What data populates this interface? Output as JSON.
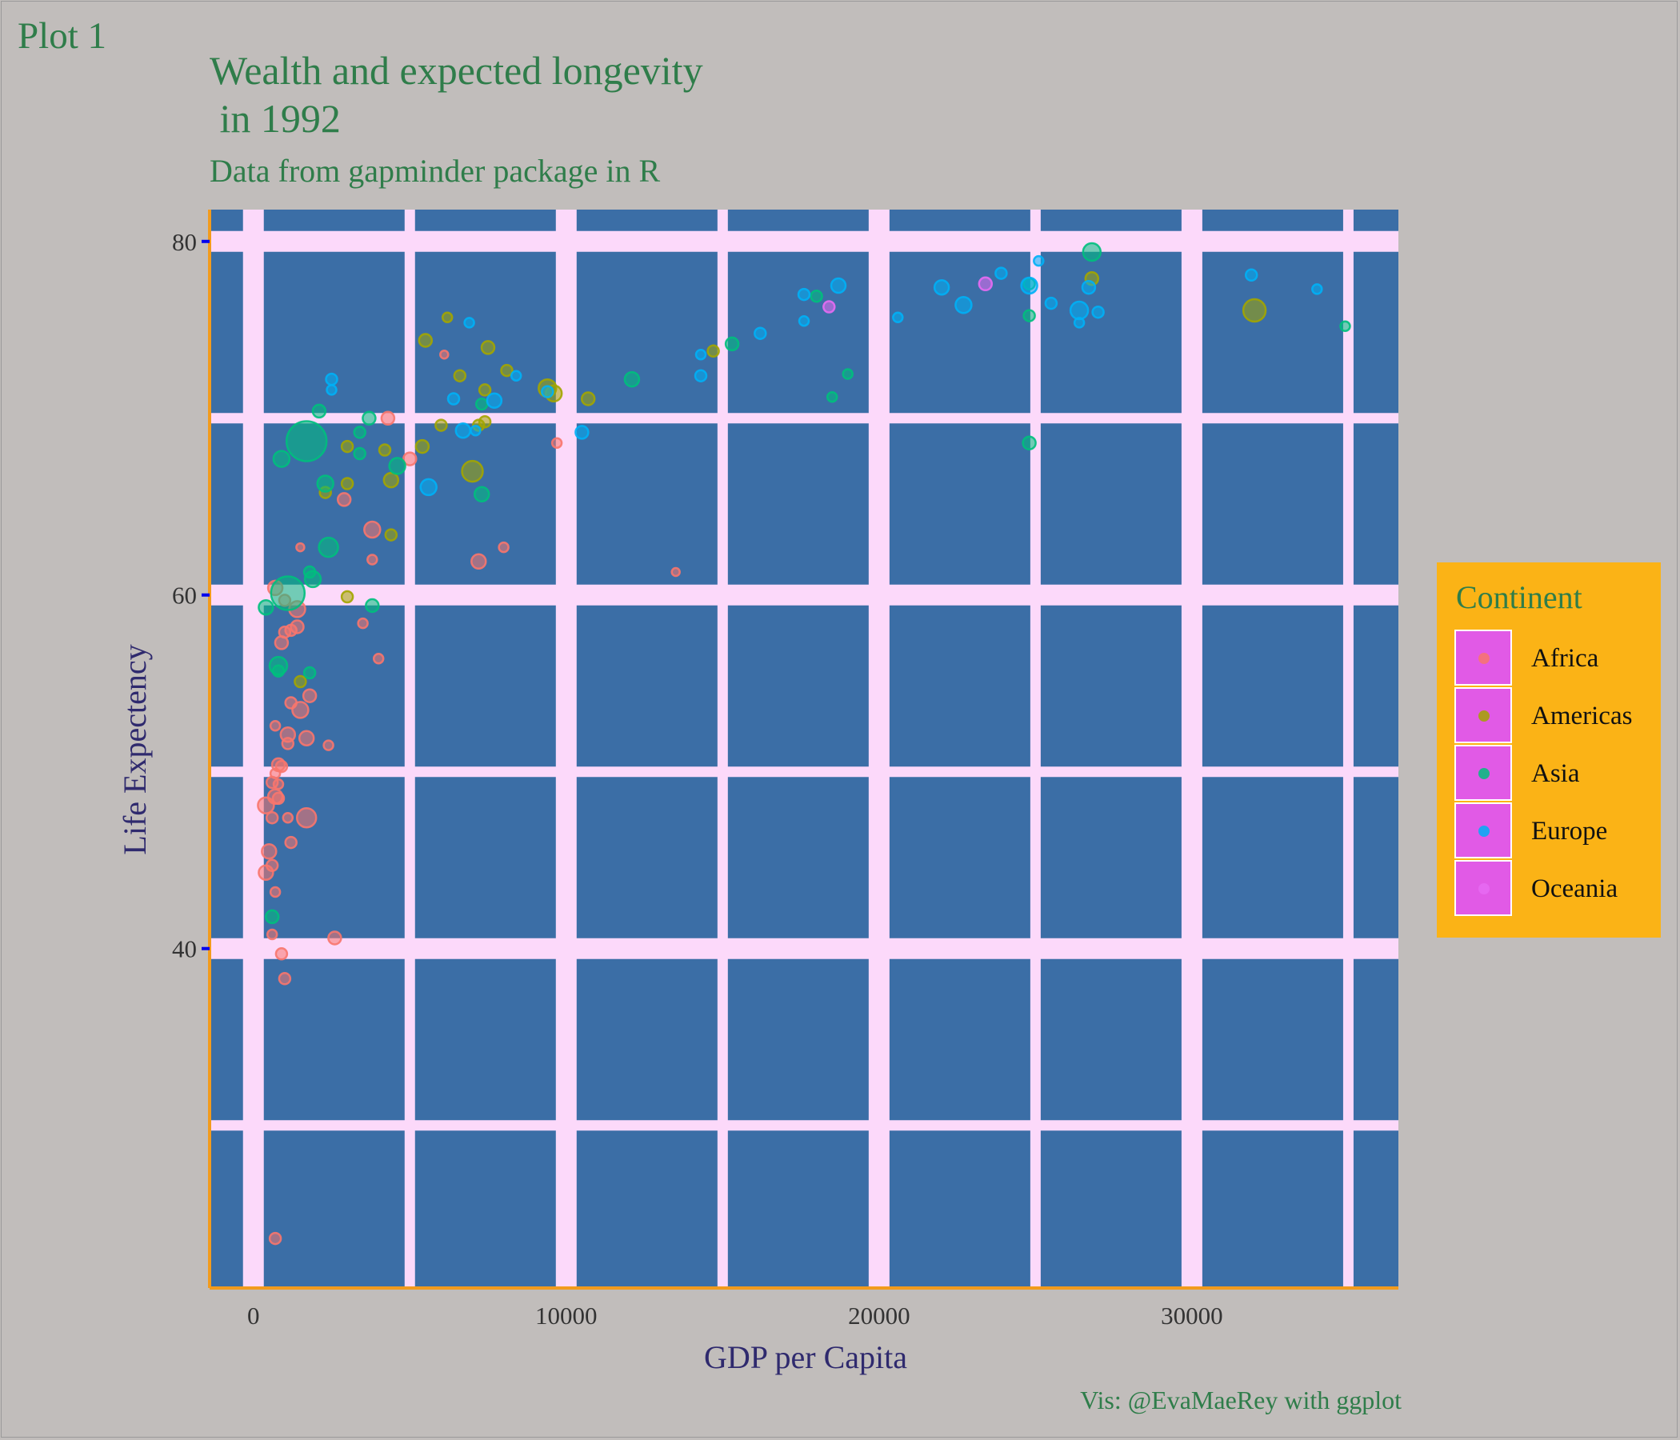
{
  "tag": "Plot 1",
  "caption": "Vis: @EvaMaeRey with ggplot",
  "chart_data": {
    "type": "scatter",
    "title": "Wealth and expected longevity\n in 1992",
    "subtitle": "Data from gapminder package in R",
    "xlabel": "GDP per Capita",
    "ylabel": "Life Expectency",
    "xlim": [
      -1400,
      36600
    ],
    "ylim": [
      20.8,
      81.8
    ],
    "x_ticks": [
      0,
      10000,
      20000,
      30000
    ],
    "y_ticks": [
      40,
      60,
      80
    ],
    "x_tick_labels": [
      "0",
      "10000",
      "20000",
      "30000"
    ],
    "y_tick_labels": [
      "40",
      "60",
      "80"
    ],
    "x_major_grid": [
      0,
      10000,
      20000,
      30000
    ],
    "x_minor_grid": [
      5000,
      15000,
      25000,
      35000
    ],
    "y_major_grid": [
      40,
      60,
      80
    ],
    "y_minor_grid": [
      30,
      50,
      70
    ],
    "grid": true,
    "colors": {
      "plot_background": "#3b6ea6",
      "grid": "#fcd9fa",
      "page_background": "#c1bdbb",
      "axis_line": "#f29b1d",
      "tick_mark": "#0000ee",
      "legend_background": "#fbb316",
      "legend_key_fill": "#e15ae6"
    },
    "legend": {
      "title": "Continent",
      "position": "right",
      "entries": [
        "Africa",
        "Americas",
        "Asia",
        "Europe",
        "Oceania"
      ]
    },
    "series": [
      {
        "name": "Africa",
        "color": "#f8766d",
        "points": [
          [
            4300,
            70.0,
            8
          ],
          [
            1500,
            62.7,
            5
          ],
          [
            2900,
            65.4,
            8
          ],
          [
            3800,
            63.7,
            10
          ],
          [
            3800,
            62.0,
            6
          ],
          [
            7200,
            61.9,
            9
          ],
          [
            8000,
            62.7,
            6
          ],
          [
            9700,
            68.6,
            6
          ],
          [
            13500,
            61.3,
            5
          ],
          [
            6100,
            73.6,
            5
          ],
          [
            5000,
            67.7,
            8
          ],
          [
            700,
            60.4,
            9
          ],
          [
            1000,
            59.7,
            7
          ],
          [
            1400,
            59.2,
            10
          ],
          [
            1400,
            58.2,
            8
          ],
          [
            1200,
            58.0,
            7
          ],
          [
            1000,
            57.9,
            7
          ],
          [
            900,
            57.3,
            8
          ],
          [
            3500,
            58.4,
            6
          ],
          [
            4000,
            56.4,
            6
          ],
          [
            1800,
            54.3,
            8
          ],
          [
            1200,
            53.9,
            7
          ],
          [
            1500,
            53.5,
            10
          ],
          [
            700,
            52.6,
            6
          ],
          [
            1100,
            52.1,
            9
          ],
          [
            1100,
            51.6,
            7
          ],
          [
            1700,
            51.9,
            9
          ],
          [
            2400,
            51.5,
            6
          ],
          [
            800,
            50.4,
            8
          ],
          [
            900,
            50.3,
            7
          ],
          [
            700,
            49.9,
            6
          ],
          [
            600,
            49.4,
            7
          ],
          [
            800,
            49.3,
            6
          ],
          [
            700,
            48.6,
            9
          ],
          [
            800,
            48.5,
            7
          ],
          [
            400,
            48.1,
            10
          ],
          [
            600,
            47.4,
            7
          ],
          [
            1100,
            47.4,
            6
          ],
          [
            1700,
            47.4,
            12
          ],
          [
            1200,
            46.0,
            7
          ],
          [
            500,
            45.5,
            9
          ],
          [
            600,
            44.7,
            7
          ],
          [
            400,
            44.3,
            9
          ],
          [
            700,
            43.2,
            6
          ],
          [
            600,
            40.8,
            6
          ],
          [
            2600,
            40.6,
            8
          ],
          [
            900,
            39.7,
            7
          ],
          [
            1000,
            38.3,
            7
          ],
          [
            700,
            23.6,
            7
          ]
        ]
      },
      {
        "name": "Americas",
        "color": "#a3a500",
        "points": [
          [
            5500,
            74.4,
            8
          ],
          [
            6200,
            75.7,
            6
          ],
          [
            7500,
            74.0,
            8
          ],
          [
            7400,
            71.6,
            7
          ],
          [
            6600,
            72.4,
            7
          ],
          [
            8100,
            72.7,
            7
          ],
          [
            9400,
            71.7,
            11
          ],
          [
            9600,
            71.4,
            10
          ],
          [
            10700,
            71.1,
            8
          ],
          [
            14700,
            73.8,
            7
          ],
          [
            7200,
            69.6,
            7
          ],
          [
            7400,
            69.8,
            7
          ],
          [
            7000,
            67.0,
            13
          ],
          [
            5400,
            68.4,
            8
          ],
          [
            6000,
            69.6,
            7
          ],
          [
            3000,
            68.4,
            7
          ],
          [
            4200,
            68.2,
            7
          ],
          [
            4400,
            66.5,
            9
          ],
          [
            3000,
            66.3,
            7
          ],
          [
            2300,
            65.8,
            7
          ],
          [
            4400,
            63.4,
            7
          ],
          [
            3000,
            59.9,
            7
          ],
          [
            1500,
            55.1,
            7
          ],
          [
            26800,
            77.9,
            8
          ],
          [
            32000,
            76.1,
            14
          ]
        ]
      },
      {
        "name": "Asia",
        "color": "#00bf7d",
        "points": [
          [
            1700,
            68.7,
            25
          ],
          [
            1100,
            60.1,
            21
          ],
          [
            900,
            67.7,
            10
          ],
          [
            2100,
            70.4,
            8
          ],
          [
            3400,
            69.2,
            7
          ],
          [
            3700,
            70.0,
            8
          ],
          [
            4600,
            67.3,
            10
          ],
          [
            2300,
            66.3,
            10
          ],
          [
            3400,
            68.0,
            7
          ],
          [
            7300,
            65.7,
            9
          ],
          [
            7300,
            70.8,
            7
          ],
          [
            2400,
            62.7,
            12
          ],
          [
            1800,
            61.3,
            7
          ],
          [
            1900,
            60.9,
            10
          ],
          [
            400,
            59.3,
            9
          ],
          [
            3800,
            59.4,
            8
          ],
          [
            800,
            56.0,
            11
          ],
          [
            800,
            55.7,
            7
          ],
          [
            1800,
            55.6,
            7
          ],
          [
            600,
            41.8,
            8
          ],
          [
            12100,
            72.2,
            9
          ],
          [
            15300,
            74.2,
            8
          ],
          [
            18000,
            76.9,
            7
          ],
          [
            19000,
            72.5,
            6
          ],
          [
            18500,
            71.2,
            6
          ],
          [
            24800,
            77.6,
            7
          ],
          [
            24800,
            75.8,
            7
          ],
          [
            24800,
            68.6,
            8
          ],
          [
            26800,
            79.4,
            11
          ],
          [
            34900,
            75.2,
            6
          ]
        ]
      },
      {
        "name": "Europe",
        "color": "#00b0f6",
        "points": [
          [
            2500,
            72.2,
            7
          ],
          [
            2500,
            71.6,
            6
          ],
          [
            6900,
            75.4,
            6
          ],
          [
            6400,
            71.1,
            7
          ],
          [
            6700,
            69.3,
            9
          ],
          [
            7100,
            69.3,
            6
          ],
          [
            7700,
            71.0,
            9
          ],
          [
            8400,
            72.4,
            6
          ],
          [
            9400,
            71.5,
            7
          ],
          [
            10500,
            69.2,
            8
          ],
          [
            5600,
            66.1,
            10
          ],
          [
            14300,
            73.6,
            6
          ],
          [
            14300,
            72.4,
            7
          ],
          [
            16200,
            74.8,
            7
          ],
          [
            17600,
            77.0,
            7
          ],
          [
            17600,
            75.5,
            6
          ],
          [
            18700,
            77.5,
            9
          ],
          [
            20600,
            75.7,
            6
          ],
          [
            22000,
            77.4,
            9
          ],
          [
            22700,
            76.4,
            10
          ],
          [
            23900,
            78.2,
            7
          ],
          [
            24800,
            77.5,
            10
          ],
          [
            25100,
            78.9,
            6
          ],
          [
            25500,
            76.5,
            7
          ],
          [
            26400,
            76.1,
            11
          ],
          [
            26400,
            75.4,
            6
          ],
          [
            26700,
            77.4,
            8
          ],
          [
            27000,
            76.0,
            7
          ],
          [
            31900,
            78.1,
            7
          ],
          [
            34000,
            77.3,
            6
          ]
        ]
      },
      {
        "name": "Oceania",
        "color": "#e76bf3",
        "points": [
          [
            18400,
            76.3,
            7
          ],
          [
            23400,
            77.6,
            8
          ]
        ]
      }
    ]
  }
}
